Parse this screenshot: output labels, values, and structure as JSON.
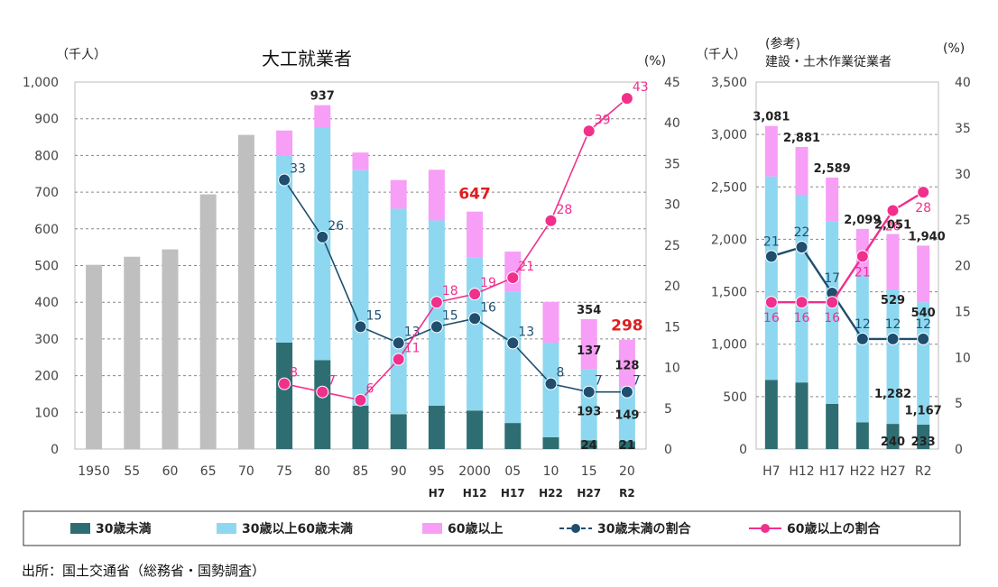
{
  "chart_data": [
    {
      "type": "bar",
      "title": "大工就業者",
      "y_unit_left": "（千人）",
      "y_unit_right": "(%)",
      "ylim": [
        0,
        1000
      ],
      "ylim_right": [
        0,
        45
      ],
      "yticks": [
        "0",
        "100",
        "200",
        "300",
        "400",
        "500",
        "600",
        "700",
        "800",
        "900",
        "1,000"
      ],
      "yticks_right": [
        "0",
        "5",
        "10",
        "15",
        "20",
        "25",
        "30",
        "35",
        "40",
        "45"
      ],
      "categories": [
        "1950",
        "55",
        "60",
        "65",
        "70",
        "75",
        "80",
        "85",
        "90",
        "95",
        "2000",
        "05",
        "10",
        "15",
        "20"
      ],
      "era_labels": [
        "",
        "",
        "",
        "",
        "",
        "",
        "",
        "",
        "",
        "H7",
        "H12",
        "H17",
        "H22",
        "H27",
        "R2"
      ],
      "total_only": [
        502,
        524,
        544,
        694,
        856,
        null,
        null,
        null,
        null,
        null,
        null,
        null,
        null,
        null,
        null
      ],
      "series": [
        {
          "name": "30歳未満",
          "values": [
            null,
            null,
            null,
            null,
            null,
            290,
            242,
            118,
            95,
            118,
            105,
            71,
            32,
            24,
            21
          ]
        },
        {
          "name": "30歳以上60歳未満",
          "values": [
            null,
            null,
            null,
            null,
            null,
            510,
            634,
            642,
            560,
            505,
            418,
            357,
            258,
            193,
            149
          ]
        },
        {
          "name": "60歳以上",
          "values": [
            null,
            null,
            null,
            null,
            null,
            68,
            61,
            48,
            78,
            138,
            124,
            110,
            111,
            137,
            128
          ]
        }
      ],
      "lines": [
        {
          "name": "30歳未満の割合",
          "values": [
            null,
            null,
            null,
            null,
            null,
            33,
            26,
            15,
            13,
            15,
            16,
            13,
            8,
            7,
            7
          ]
        },
        {
          "name": "60歳以上の割合",
          "values": [
            null,
            null,
            null,
            null,
            null,
            8,
            7,
            6,
            11,
            18,
            19,
            21,
            28,
            39,
            43
          ]
        }
      ],
      "labels": {
        "total_80": "937",
        "total_2000": "647",
        "total_15": "354",
        "total_20": "298",
        "old_15": "137",
        "old_20": "128",
        "mid_15": "193",
        "mid_20": "149",
        "young_15": "24",
        "young_20": "21"
      }
    },
    {
      "type": "bar",
      "title_line1": "(参考)",
      "title_line2": "建設・土木作業従業者",
      "y_unit_left": "（千人）",
      "y_unit_right": "(%)",
      "ylim": [
        0,
        3500
      ],
      "ylim_right": [
        0,
        40
      ],
      "yticks": [
        "0",
        "500",
        "1,000",
        "1,500",
        "2,000",
        "2,500",
        "3,000",
        "3,500"
      ],
      "yticks_right": [
        "0",
        "5",
        "10",
        "15",
        "20",
        "25",
        "30",
        "35",
        "40"
      ],
      "categories": [
        "H7",
        "H12",
        "H17",
        "H22",
        "H27",
        "R2"
      ],
      "series": [
        {
          "name": "30歳未満",
          "values": [
            660,
            635,
            430,
            255,
            240,
            233
          ]
        },
        {
          "name": "30歳以上60歳未満",
          "values": [
            1940,
            1790,
            1745,
            1400,
            1282,
            1167
          ]
        },
        {
          "name": "60歳以上",
          "values": [
            481,
            456,
            414,
            444,
            529,
            540
          ]
        }
      ],
      "lines": [
        {
          "name": "30歳未満の割合",
          "values": [
            21,
            22,
            17,
            12,
            12,
            12
          ]
        },
        {
          "name": "60歳以上の割合",
          "values": [
            16,
            16,
            16,
            21,
            26,
            28
          ]
        }
      ],
      "labels": {
        "totals": [
          "3,081",
          "2,881",
          "2,589",
          "2,099",
          "2,051",
          "1,940"
        ],
        "old_r2": "540",
        "old_h27": "529",
        "mid_h27": "1,282",
        "mid_r2": "1,167",
        "young_h27": "240",
        "young_r2": "233"
      }
    }
  ],
  "legend": [
    {
      "name": "30歳未満",
      "kind": "bar",
      "color": "#2e6e72"
    },
    {
      "name": "30歳以上60歳未満",
      "kind": "bar",
      "color": "#8dd8f0"
    },
    {
      "name": "60歳以上",
      "kind": "bar",
      "color": "#f79ef7"
    },
    {
      "name": "30歳未満の割合",
      "kind": "line",
      "color": "#1f4e6e"
    },
    {
      "name": "60歳以上の割合",
      "kind": "line",
      "color": "#f0308c"
    }
  ],
  "colors": {
    "gray": "#bfbfbf",
    "young": "#2e6e72",
    "mid": "#8dd8f0",
    "old": "#f79ef7",
    "young_line": "#1f4e6e",
    "old_line": "#f0308c",
    "highlight": "#e01e1e"
  },
  "source": "出所：国土交通省（総務省・国勢調査）"
}
